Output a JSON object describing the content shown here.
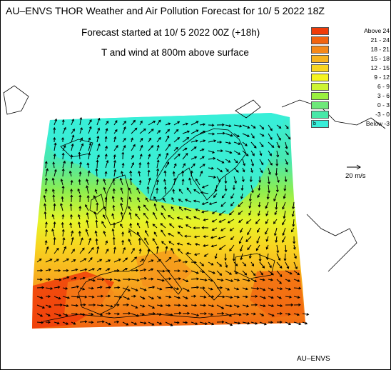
{
  "map": {
    "title": "AU–ENVS THOR Weather and Air Pollution Forecast for 10/ 5 2022  18Z",
    "subtitle": "Forecast started at 10/ 5 2022  00Z (+18h)",
    "subtitle2": "T and wind at 800m above surface",
    "credit": "AU–ENVS",
    "wind_scale_label": "20 m/s",
    "colors": {
      "land_outline": "#000000",
      "arrow": "#000000"
    }
  },
  "legend": {
    "items": [
      {
        "box_text": "",
        "label": "Above   24",
        "color": "#f03c0a"
      },
      {
        "box_text": "",
        "label": "21 -  24",
        "color": "#f26410"
      },
      {
        "box_text": "",
        "label": "18 -  21",
        "color": "#f5891a"
      },
      {
        "box_text": "",
        "label": "15 -  18",
        "color": "#f7b320"
      },
      {
        "box_text": "",
        "label": "12 -  15",
        "color": "#f8d520"
      },
      {
        "box_text": "",
        "label": "9 -  12",
        "color": "#f5f41f"
      },
      {
        "box_text": "",
        "label": "6 -   9",
        "color": "#cdf531"
      },
      {
        "box_text": "",
        "label": "3 -   6",
        "color": "#99f040"
      },
      {
        "box_text": "",
        "label": "0 -   3",
        "color": "#6ee87a"
      },
      {
        "box_text": "",
        "label": "-3 -   0",
        "color": "#48e8a8"
      },
      {
        "box_text": "b",
        "label": "Below   -3",
        "color": "#38eed8"
      }
    ]
  }
}
